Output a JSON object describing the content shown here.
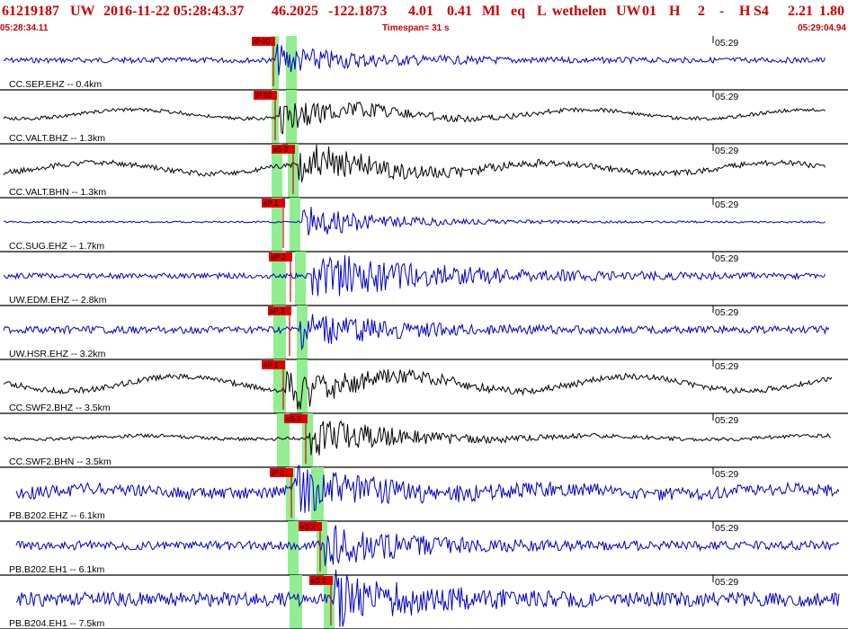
{
  "header": {
    "event_id": "61219187",
    "network": "UW",
    "origin_datetime": "2016-11-22 05:28:43.37",
    "latitude": "46.2025",
    "longitude": "-122.1873",
    "depth": "4.01",
    "magnitude": "0.41",
    "mag_type": "Ml",
    "event_type": "eq",
    "location_flag": "L",
    "analyst": "wethelen",
    "agency": "UW",
    "version": "01",
    "quality_a": "H",
    "quality_b": "2",
    "dash": "-",
    "quality_c": "H",
    "solution": "S4",
    "value_a": "2.21",
    "value_b": "1.80"
  },
  "subheader": {
    "start_time": "05:28:34.11",
    "timespan": "Timespan=  31 s",
    "end_time": "05:29:04.94"
  },
  "colors": {
    "header_text": "#cc0000",
    "trace_blue": "#0000c8",
    "trace_black": "#000000",
    "pick_flag": "#e00000",
    "pick_window": "#90ee90"
  },
  "traces": [
    {
      "label": "CC.SEP.EHZ -- 0.4km",
      "time_mark": "05:29",
      "pick_label": "iP 00",
      "color": "blue"
    },
    {
      "label": "CC.VALT.BHZ -- 1.3km",
      "time_mark": "05:29",
      "pick_label": "iP 00",
      "color": "black"
    },
    {
      "label": "CC.VALT.BHN -- 1.3km",
      "time_mark": "05:29",
      "pick_label": "eS 2",
      "color": "black"
    },
    {
      "label": "CC.SUG.EHZ -- 1.7km",
      "time_mark": "05:29",
      "pick_label": "eP 1",
      "color": "blue"
    },
    {
      "label": "UW.EDM.EHZ -- 2.8km",
      "time_mark": "05:29",
      "pick_label": "eP 2",
      "color": "blue"
    },
    {
      "label": "UW.HSR.EHZ -- 3.2km",
      "time_mark": "05:29",
      "pick_label": "eP 2",
      "color": "blue"
    },
    {
      "label": "CC.SWF2.BHZ -- 3.5km",
      "time_mark": "05:29",
      "pick_label": "eP 1",
      "color": "black"
    },
    {
      "label": "CC.SWF2.BHN -- 3.5km",
      "time_mark": "05:29",
      "pick_label": "eS 2",
      "color": "black"
    },
    {
      "label": "PB.B202.EHZ -- 6.1km",
      "time_mark": "05:29",
      "pick_label": "iP 0",
      "color": "blue"
    },
    {
      "label": "PB.B202.EH1 -- 6.1km",
      "time_mark": "05:29",
      "pick_label": "eS 2",
      "color": "blue"
    },
    {
      "label": "PB.B204.EH1 -- 7.5km",
      "time_mark": "05:29",
      "pick_label": "eS 2",
      "color": "blue"
    }
  ]
}
